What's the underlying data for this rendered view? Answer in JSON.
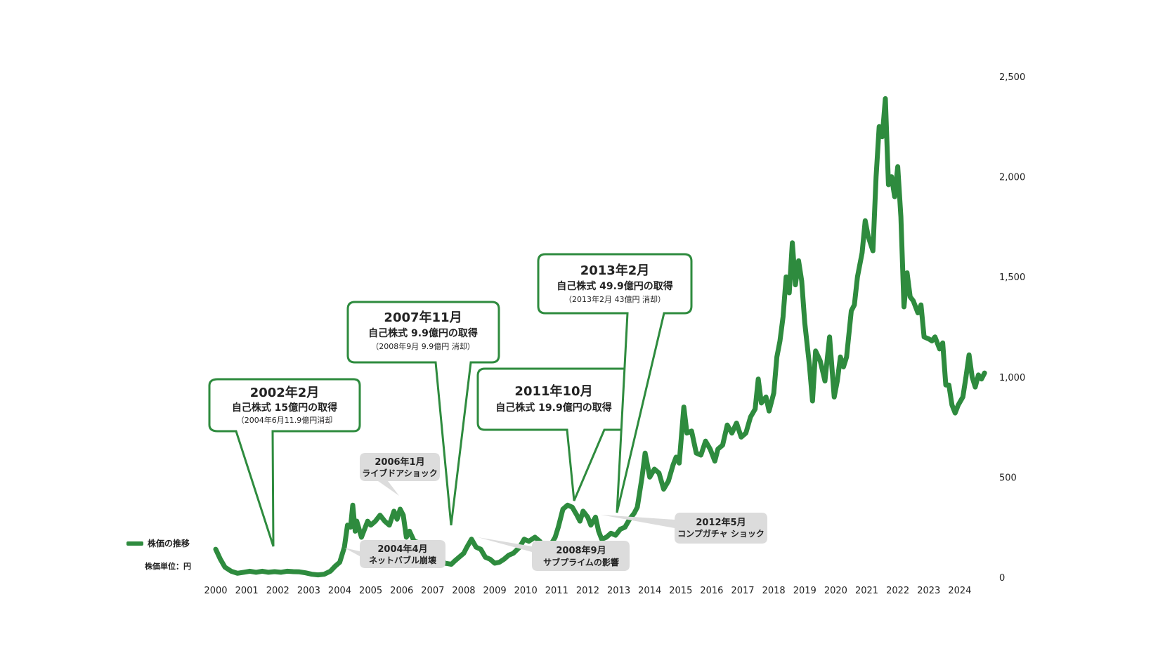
{
  "legend": {
    "label": "株価の推移",
    "unit": "株価単位：円"
  },
  "colors": {
    "line": "#2e8b3e",
    "callout_border": "#2e8b3e",
    "event_box": "#dcdcdc"
  },
  "callouts": [
    {
      "title": "2002年2月",
      "line1": "自己株式 15億円の取得",
      "line2": "（2004年6月11.9億円消却"
    },
    {
      "title": "2007年11月",
      "line1": "自己株式 9.9億円の取得",
      "line2": "（2008年9月 9.9億円 消却）"
    },
    {
      "title": "2011年10月",
      "line1": "自己株式 19.9億円の取得",
      "line2": ""
    },
    {
      "title": "2013年2月",
      "line1": "自己株式 49.9億円の取得",
      "line2": "（2013年2月 43億円 消却）"
    }
  ],
  "events": [
    {
      "line1": "2006年1月",
      "line2": "ライブドアショック"
    },
    {
      "line1": "2004年4月",
      "line2": "ネットバブル崩壊"
    },
    {
      "line1": "2008年9月",
      "line2": "サブプライムの影響"
    },
    {
      "line1": "2012年5月",
      "line2": "コンプガチャ ショック"
    }
  ],
  "chart_data": {
    "type": "line",
    "x_ticks": [
      "2000",
      "2001",
      "2002",
      "2003",
      "2004",
      "2005",
      "2006",
      "2007",
      "2008",
      "2009",
      "2010",
      "2011",
      "2012",
      "2013",
      "2014",
      "2015",
      "2016",
      "2017",
      "2018",
      "2019",
      "2020",
      "2021",
      "2022",
      "2023",
      "2024"
    ],
    "y_ticks": [
      "0",
      "500",
      "1,000",
      "1,500",
      "2,000",
      "2,500"
    ],
    "ylim": [
      0,
      2500
    ],
    "xlim": [
      2000,
      2025
    ],
    "y_axis_position": "right",
    "grid": false,
    "series": [
      {
        "name": "株価の推移",
        "points": [
          [
            2000.0,
            140
          ],
          [
            2000.15,
            90
          ],
          [
            2000.3,
            50
          ],
          [
            2000.5,
            30
          ],
          [
            2000.7,
            20
          ],
          [
            2000.9,
            25
          ],
          [
            2001.1,
            30
          ],
          [
            2001.3,
            25
          ],
          [
            2001.5,
            30
          ],
          [
            2001.7,
            25
          ],
          [
            2001.9,
            28
          ],
          [
            2002.1,
            25
          ],
          [
            2002.3,
            30
          ],
          [
            2002.5,
            28
          ],
          [
            2002.7,
            27
          ],
          [
            2002.9,
            22
          ],
          [
            2003.1,
            15
          ],
          [
            2003.3,
            12
          ],
          [
            2003.5,
            15
          ],
          [
            2003.7,
            30
          ],
          [
            2003.85,
            55
          ],
          [
            2004.0,
            75
          ],
          [
            2004.15,
            150
          ],
          [
            2004.25,
            260
          ],
          [
            2004.35,
            250
          ],
          [
            2004.42,
            360
          ],
          [
            2004.5,
            230
          ],
          [
            2004.55,
            280
          ],
          [
            2004.7,
            200
          ],
          [
            2004.9,
            280
          ],
          [
            2005.0,
            260
          ],
          [
            2005.15,
            280
          ],
          [
            2005.3,
            310
          ],
          [
            2005.45,
            280
          ],
          [
            2005.6,
            260
          ],
          [
            2005.75,
            330
          ],
          [
            2005.85,
            290
          ],
          [
            2005.95,
            340
          ],
          [
            2006.05,
            310
          ],
          [
            2006.15,
            200
          ],
          [
            2006.25,
            230
          ],
          [
            2006.4,
            180
          ],
          [
            2006.6,
            170
          ],
          [
            2006.8,
            150
          ],
          [
            2007.0,
            110
          ],
          [
            2007.2,
            90
          ],
          [
            2007.4,
            70
          ],
          [
            2007.6,
            65
          ],
          [
            2007.7,
            80
          ],
          [
            2007.85,
            100
          ],
          [
            2008.0,
            120
          ],
          [
            2008.1,
            150
          ],
          [
            2008.25,
            190
          ],
          [
            2008.4,
            150
          ],
          [
            2008.55,
            140
          ],
          [
            2008.7,
            100
          ],
          [
            2008.85,
            90
          ],
          [
            2009.0,
            70
          ],
          [
            2009.15,
            75
          ],
          [
            2009.3,
            90
          ],
          [
            2009.45,
            110
          ],
          [
            2009.6,
            120
          ],
          [
            2009.8,
            150
          ],
          [
            2009.95,
            190
          ],
          [
            2010.1,
            180
          ],
          [
            2010.3,
            200
          ],
          [
            2010.45,
            180
          ],
          [
            2010.6,
            150
          ],
          [
            2010.8,
            160
          ],
          [
            2010.95,
            200
          ],
          [
            2011.05,
            250
          ],
          [
            2011.2,
            340
          ],
          [
            2011.35,
            360
          ],
          [
            2011.5,
            350
          ],
          [
            2011.65,
            310
          ],
          [
            2011.75,
            280
          ],
          [
            2011.85,
            330
          ],
          [
            2012.0,
            300
          ],
          [
            2012.1,
            260
          ],
          [
            2012.25,
            300
          ],
          [
            2012.35,
            230
          ],
          [
            2012.45,
            190
          ],
          [
            2012.6,
            200
          ],
          [
            2012.75,
            220
          ],
          [
            2012.9,
            210
          ],
          [
            2013.05,
            240
          ],
          [
            2013.2,
            250
          ],
          [
            2013.35,
            290
          ],
          [
            2013.5,
            320
          ],
          [
            2013.6,
            350
          ],
          [
            2013.75,
            500
          ],
          [
            2013.85,
            620
          ],
          [
            2014.0,
            500
          ],
          [
            2014.15,
            540
          ],
          [
            2014.3,
            520
          ],
          [
            2014.45,
            440
          ],
          [
            2014.6,
            480
          ],
          [
            2014.75,
            560
          ],
          [
            2014.85,
            600
          ],
          [
            2014.95,
            570
          ],
          [
            2015.1,
            850
          ],
          [
            2015.2,
            720
          ],
          [
            2015.35,
            730
          ],
          [
            2015.5,
            620
          ],
          [
            2015.65,
            610
          ],
          [
            2015.8,
            680
          ],
          [
            2015.95,
            640
          ],
          [
            2016.1,
            580
          ],
          [
            2016.2,
            640
          ],
          [
            2016.35,
            660
          ],
          [
            2016.5,
            760
          ],
          [
            2016.65,
            720
          ],
          [
            2016.8,
            770
          ],
          [
            2016.95,
            700
          ],
          [
            2017.1,
            720
          ],
          [
            2017.25,
            800
          ],
          [
            2017.4,
            840
          ],
          [
            2017.5,
            990
          ],
          [
            2017.6,
            870
          ],
          [
            2017.75,
            900
          ],
          [
            2017.85,
            830
          ],
          [
            2018.0,
            920
          ],
          [
            2018.1,
            1100
          ],
          [
            2018.2,
            1180
          ],
          [
            2018.3,
            1300
          ],
          [
            2018.4,
            1500
          ],
          [
            2018.5,
            1420
          ],
          [
            2018.6,
            1670
          ],
          [
            2018.7,
            1460
          ],
          [
            2018.8,
            1580
          ],
          [
            2018.9,
            1480
          ],
          [
            2019.0,
            1270
          ],
          [
            2019.15,
            1060
          ],
          [
            2019.25,
            880
          ],
          [
            2019.35,
            1130
          ],
          [
            2019.5,
            1080
          ],
          [
            2019.65,
            980
          ],
          [
            2019.8,
            1200
          ],
          [
            2019.95,
            900
          ],
          [
            2020.05,
            980
          ],
          [
            2020.15,
            1100
          ],
          [
            2020.25,
            1050
          ],
          [
            2020.35,
            1100
          ],
          [
            2020.5,
            1330
          ],
          [
            2020.6,
            1360
          ],
          [
            2020.7,
            1500
          ],
          [
            2020.85,
            1620
          ],
          [
            2020.95,
            1780
          ],
          [
            2021.05,
            1700
          ],
          [
            2021.2,
            1630
          ],
          [
            2021.3,
            2000
          ],
          [
            2021.4,
            2250
          ],
          [
            2021.5,
            2200
          ],
          [
            2021.6,
            2390
          ],
          [
            2021.7,
            1960
          ],
          [
            2021.8,
            2000
          ],
          [
            2021.9,
            1900
          ],
          [
            2022.0,
            2050
          ],
          [
            2022.1,
            1800
          ],
          [
            2022.2,
            1350
          ],
          [
            2022.3,
            1520
          ],
          [
            2022.4,
            1400
          ],
          [
            2022.5,
            1380
          ],
          [
            2022.65,
            1320
          ],
          [
            2022.75,
            1360
          ],
          [
            2022.85,
            1200
          ],
          [
            2023.0,
            1190
          ],
          [
            2023.1,
            1180
          ],
          [
            2023.2,
            1200
          ],
          [
            2023.35,
            1140
          ],
          [
            2023.45,
            1170
          ],
          [
            2023.55,
            960
          ],
          [
            2023.65,
            960
          ],
          [
            2023.75,
            860
          ],
          [
            2023.85,
            820
          ],
          [
            2023.95,
            860
          ],
          [
            2024.1,
            900
          ],
          [
            2024.2,
            1000
          ],
          [
            2024.3,
            1110
          ],
          [
            2024.4,
            1000
          ],
          [
            2024.5,
            950
          ],
          [
            2024.6,
            1010
          ],
          [
            2024.7,
            990
          ],
          [
            2024.8,
            1020
          ]
        ]
      }
    ]
  }
}
